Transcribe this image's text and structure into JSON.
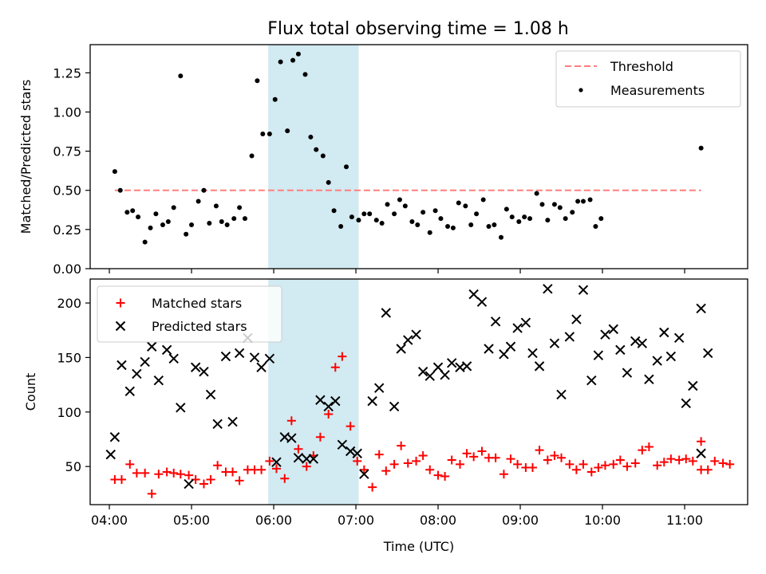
{
  "title": "Flux total observing time = 1.08 h",
  "colors": {
    "threshold": "#ff7f7f",
    "measurements": "#000000",
    "matched": "#ff0000",
    "predicted": "#000000",
    "highlight": "#add8e6"
  },
  "chart_data": [
    {
      "type": "scatter",
      "ylabel": "Matched/Predicted stars",
      "xlabel": "",
      "xlim": [
        "03:46",
        "11:46"
      ],
      "ylim": [
        0,
        1.43
      ],
      "yticks": [
        "0.00",
        "0.25",
        "0.50",
        "0.75",
        "1.00",
        "1.25"
      ],
      "xticks": [
        "04:00",
        "05:00",
        "06:00",
        "07:00",
        "08:00",
        "09:00",
        "10:00",
        "11:00"
      ],
      "legend_position": "top-right",
      "highlight_span": [
        "05:56",
        "07:02"
      ],
      "threshold": {
        "name": "Threshold",
        "value": 0.5,
        "x_range": [
          "04:04",
          "11:12"
        ]
      },
      "series": [
        {
          "name": "Measurements",
          "marker": "dot",
          "points": [
            [
              "04:04",
              0.62
            ],
            [
              "04:08",
              0.5
            ],
            [
              "04:13",
              0.36
            ],
            [
              "04:17",
              0.37
            ],
            [
              "04:21",
              0.33
            ],
            [
              "04:26",
              0.17
            ],
            [
              "04:30",
              0.26
            ],
            [
              "04:34",
              0.35
            ],
            [
              "04:39",
              0.28
            ],
            [
              "04:43",
              0.3
            ],
            [
              "04:47",
              0.39
            ],
            [
              "04:52",
              1.23
            ],
            [
              "04:56",
              0.22
            ],
            [
              "05:00",
              0.28
            ],
            [
              "05:05",
              0.43
            ],
            [
              "05:09",
              0.5
            ],
            [
              "05:13",
              0.29
            ],
            [
              "05:18",
              0.4
            ],
            [
              "05:22",
              0.3
            ],
            [
              "05:26",
              0.28
            ],
            [
              "05:31",
              0.32
            ],
            [
              "05:35",
              0.39
            ],
            [
              "05:39",
              0.32
            ],
            [
              "05:44",
              0.72
            ],
            [
              "05:48",
              1.2
            ],
            [
              "05:52",
              0.86
            ],
            [
              "05:57",
              0.86
            ],
            [
              "06:01",
              1.08
            ],
            [
              "06:05",
              1.32
            ],
            [
              "06:10",
              0.88
            ],
            [
              "06:14",
              1.33
            ],
            [
              "06:18",
              1.37
            ],
            [
              "06:23",
              1.24
            ],
            [
              "06:27",
              0.84
            ],
            [
              "06:31",
              0.76
            ],
            [
              "06:36",
              0.72
            ],
            [
              "06:40",
              0.55
            ],
            [
              "06:44",
              0.37
            ],
            [
              "06:49",
              0.27
            ],
            [
              "06:53",
              0.65
            ],
            [
              "06:57",
              0.33
            ],
            [
              "07:02",
              0.31
            ],
            [
              "07:06",
              0.35
            ],
            [
              "07:10",
              0.35
            ],
            [
              "07:15",
              0.31
            ],
            [
              "07:19",
              0.29
            ],
            [
              "07:23",
              0.41
            ],
            [
              "07:28",
              0.35
            ],
            [
              "07:32",
              0.44
            ],
            [
              "07:36",
              0.4
            ],
            [
              "07:41",
              0.3
            ],
            [
              "07:45",
              0.28
            ],
            [
              "07:49",
              0.36
            ],
            [
              "07:54",
              0.23
            ],
            [
              "07:58",
              0.37
            ],
            [
              "08:02",
              0.32
            ],
            [
              "08:07",
              0.27
            ],
            [
              "08:11",
              0.26
            ],
            [
              "08:15",
              0.42
            ],
            [
              "08:20",
              0.4
            ],
            [
              "08:24",
              0.28
            ],
            [
              "08:28",
              0.35
            ],
            [
              "08:33",
              0.44
            ],
            [
              "08:37",
              0.27
            ],
            [
              "08:41",
              0.28
            ],
            [
              "08:46",
              0.2
            ],
            [
              "08:50",
              0.38
            ],
            [
              "08:54",
              0.33
            ],
            [
              "08:59",
              0.3
            ],
            [
              "09:03",
              0.33
            ],
            [
              "09:07",
              0.32
            ],
            [
              "09:12",
              0.48
            ],
            [
              "09:16",
              0.41
            ],
            [
              "09:20",
              0.31
            ],
            [
              "09:25",
              0.41
            ],
            [
              "09:29",
              0.39
            ],
            [
              "09:33",
              0.32
            ],
            [
              "09:38",
              0.36
            ],
            [
              "09:42",
              0.43
            ],
            [
              "09:46",
              0.43
            ],
            [
              "09:51",
              0.44
            ],
            [
              "09:55",
              0.27
            ],
            [
              "09:59",
              0.32
            ],
            [
              "11:12",
              0.77
            ]
          ]
        }
      ]
    },
    {
      "type": "scatter",
      "ylabel": "Count",
      "xlabel": "Time (UTC)",
      "xlim": [
        "03:46",
        "11:46"
      ],
      "ylim": [
        15,
        222
      ],
      "yticks": [
        "50",
        "100",
        "150",
        "200"
      ],
      "xticks": [
        "04:00",
        "05:00",
        "06:00",
        "07:00",
        "08:00",
        "09:00",
        "10:00",
        "11:00"
      ],
      "legend_position": "top-left",
      "highlight_span": [
        "05:56",
        "07:02"
      ],
      "series": [
        {
          "name": "Matched stars",
          "marker": "plus",
          "points": [
            [
              "04:04",
              38
            ],
            [
              "04:09",
              38
            ],
            [
              "04:15",
              52
            ],
            [
              "04:20",
              44
            ],
            [
              "04:26",
              44
            ],
            [
              "04:31",
              25
            ],
            [
              "04:36",
              43
            ],
            [
              "04:42",
              45
            ],
            [
              "04:47",
              44
            ],
            [
              "04:52",
              43
            ],
            [
              "04:58",
              42
            ],
            [
              "05:03",
              38
            ],
            [
              "05:09",
              34
            ],
            [
              "05:14",
              38
            ],
            [
              "05:19",
              51
            ],
            [
              "05:25",
              45
            ],
            [
              "05:30",
              45
            ],
            [
              "05:35",
              37
            ],
            [
              "05:41",
              47
            ],
            [
              "05:46",
              47
            ],
            [
              "05:51",
              47
            ],
            [
              "05:57",
              55
            ],
            [
              "06:02",
              48
            ],
            [
              "06:08",
              39
            ],
            [
              "06:13",
              92
            ],
            [
              "06:18",
              66
            ],
            [
              "06:24",
              50
            ],
            [
              "06:29",
              60
            ],
            [
              "06:34",
              77
            ],
            [
              "06:40",
              98
            ],
            [
              "06:45",
              141
            ],
            [
              "06:50",
              151
            ],
            [
              "06:56",
              87
            ],
            [
              "07:01",
              55
            ],
            [
              "07:06",
              47
            ],
            [
              "07:12",
              31
            ],
            [
              "07:17",
              61
            ],
            [
              "07:22",
              46
            ],
            [
              "07:28",
              52
            ],
            [
              "07:33",
              69
            ],
            [
              "07:38",
              53
            ],
            [
              "07:44",
              55
            ],
            [
              "07:49",
              60
            ],
            [
              "07:54",
              47
            ],
            [
              "08:00",
              42
            ],
            [
              "08:05",
              41
            ],
            [
              "08:10",
              56
            ],
            [
              "08:16",
              52
            ],
            [
              "08:21",
              62
            ],
            [
              "08:26",
              59
            ],
            [
              "08:32",
              64
            ],
            [
              "08:37",
              58
            ],
            [
              "08:42",
              58
            ],
            [
              "08:48",
              43
            ],
            [
              "08:53",
              57
            ],
            [
              "08:58",
              52
            ],
            [
              "09:04",
              49
            ],
            [
              "09:09",
              49
            ],
            [
              "09:14",
              65
            ],
            [
              "09:20",
              56
            ],
            [
              "09:25",
              60
            ],
            [
              "09:30",
              58
            ],
            [
              "09:36",
              52
            ],
            [
              "09:41",
              47
            ],
            [
              "09:46",
              52
            ],
            [
              "09:52",
              45
            ],
            [
              "09:57",
              49
            ],
            [
              "10:02",
              51
            ],
            [
              "10:08",
              52
            ],
            [
              "10:13",
              56
            ],
            [
              "10:18",
              50
            ],
            [
              "10:24",
              53
            ],
            [
              "10:29",
              65
            ],
            [
              "10:34",
              68
            ],
            [
              "10:40",
              51
            ],
            [
              "10:45",
              54
            ],
            [
              "10:50",
              57
            ],
            [
              "10:56",
              56
            ],
            [
              "11:01",
              57
            ],
            [
              "11:06",
              55
            ],
            [
              "11:12",
              73
            ],
            [
              "11:17",
              47
            ],
            [
              "11:22",
              55
            ],
            [
              "11:28",
              53
            ],
            [
              "11:33",
              52
            ],
            [
              "11:12",
              47
            ]
          ]
        },
        {
          "name": "Predicted stars",
          "marker": "x",
          "points": [
            [
              "04:01",
              61
            ],
            [
              "04:04",
              77
            ],
            [
              "04:09",
              143
            ],
            [
              "04:15",
              119
            ],
            [
              "04:20",
              135
            ],
            [
              "04:26",
              146
            ],
            [
              "04:31",
              160
            ],
            [
              "04:36",
              129
            ],
            [
              "04:42",
              157
            ],
            [
              "04:47",
              149
            ],
            [
              "04:52",
              104
            ],
            [
              "04:58",
              34
            ],
            [
              "05:03",
              141
            ],
            [
              "05:09",
              137
            ],
            [
              "05:14",
              116
            ],
            [
              "05:19",
              89
            ],
            [
              "05:25",
              151
            ],
            [
              "05:30",
              91
            ],
            [
              "05:35",
              154
            ],
            [
              "05:41",
              168
            ],
            [
              "05:46",
              150
            ],
            [
              "05:51",
              141
            ],
            [
              "05:57",
              149
            ],
            [
              "06:02",
              54
            ],
            [
              "06:08",
              77
            ],
            [
              "06:13",
              76
            ],
            [
              "06:18",
              58
            ],
            [
              "06:24",
              57
            ],
            [
              "06:29",
              57
            ],
            [
              "06:34",
              111
            ],
            [
              "06:40",
              105
            ],
            [
              "06:45",
              110
            ],
            [
              "06:50",
              70
            ],
            [
              "06:56",
              64
            ],
            [
              "07:01",
              62
            ],
            [
              "07:06",
              43
            ],
            [
              "07:12",
              110
            ],
            [
              "07:17",
              122
            ],
            [
              "07:22",
              191
            ],
            [
              "07:28",
              105
            ],
            [
              "07:33",
              158
            ],
            [
              "07:38",
              166
            ],
            [
              "07:44",
              171
            ],
            [
              "07:49",
              137
            ],
            [
              "07:54",
              133
            ],
            [
              "08:00",
              141
            ],
            [
              "08:05",
              134
            ],
            [
              "08:10",
              145
            ],
            [
              "08:16",
              141
            ],
            [
              "08:21",
              142
            ],
            [
              "08:26",
              208
            ],
            [
              "08:32",
              201
            ],
            [
              "08:37",
              158
            ],
            [
              "08:42",
              183
            ],
            [
              "08:48",
              153
            ],
            [
              "08:53",
              160
            ],
            [
              "08:58",
              177
            ],
            [
              "09:04",
              182
            ],
            [
              "09:09",
              154
            ],
            [
              "09:14",
              142
            ],
            [
              "09:20",
              213
            ],
            [
              "09:25",
              163
            ],
            [
              "09:30",
              116
            ],
            [
              "09:36",
              169
            ],
            [
              "09:41",
              185
            ],
            [
              "09:46",
              212
            ],
            [
              "09:52",
              129
            ],
            [
              "09:57",
              152
            ],
            [
              "10:02",
              171
            ],
            [
              "10:08",
              176
            ],
            [
              "10:13",
              157
            ],
            [
              "10:18",
              136
            ],
            [
              "10:24",
              165
            ],
            [
              "10:29",
              163
            ],
            [
              "10:34",
              130
            ],
            [
              "10:40",
              147
            ],
            [
              "10:45",
              173
            ],
            [
              "10:50",
              151
            ],
            [
              "10:56",
              168
            ],
            [
              "11:01",
              108
            ],
            [
              "11:06",
              124
            ],
            [
              "11:12",
              195
            ],
            [
              "11:17",
              154
            ],
            [
              "11:12",
              62
            ]
          ]
        }
      ]
    }
  ]
}
